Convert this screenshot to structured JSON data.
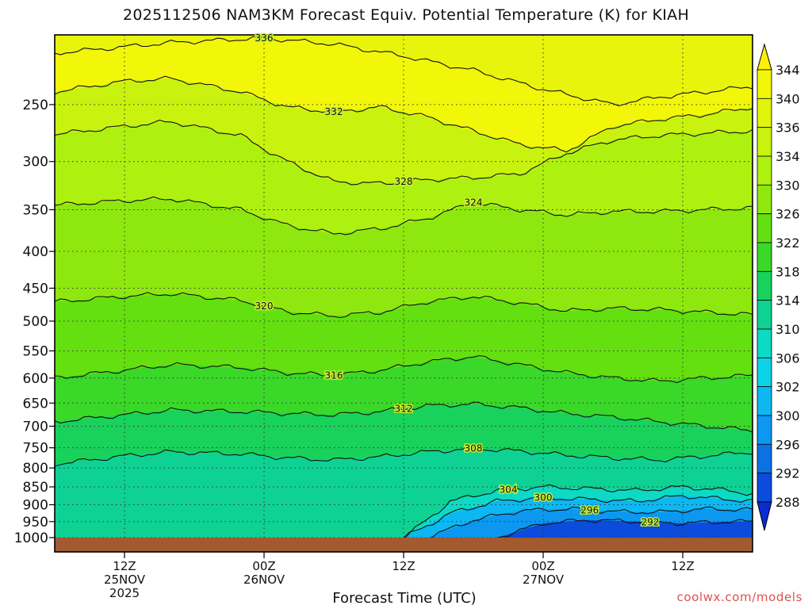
{
  "chart_data": {
    "type": "contour",
    "title": "2025112506 NAM3KM Forecast Equiv. Potential Temperature (K) for KIAH",
    "xlabel": "Forecast Time (UTC)",
    "ylabel": "",
    "credit": "coolwx.com/models",
    "y_axis": {
      "scale": "log-pressure",
      "range": [
        1000,
        200
      ],
      "ticks": [
        "250",
        "300",
        "350",
        "400",
        "450",
        "500",
        "550",
        "600",
        "650",
        "700",
        "750",
        "800",
        "850",
        "900",
        "950",
        "1000"
      ]
    },
    "x_axis": {
      "range_hours": [
        0,
        60
      ],
      "ticks": [
        {
          "hour": 6,
          "l1": "12Z",
          "l2": "25NOV",
          "l3": "2025"
        },
        {
          "hour": 18,
          "l1": "00Z",
          "l2": "26NOV",
          "l3": ""
        },
        {
          "hour": 30,
          "l1": "12Z",
          "l2": "",
          "l3": ""
        },
        {
          "hour": 42,
          "l1": "00Z",
          "l2": "27NOV",
          "l3": ""
        },
        {
          "hour": 54,
          "l1": "12Z",
          "l2": "",
          "l3": ""
        }
      ]
    },
    "colorbar": {
      "labels": [
        "344",
        "340",
        "336",
        "334",
        "330",
        "326",
        "322",
        "318",
        "314",
        "310",
        "306",
        "302",
        "300",
        "296",
        "292",
        "288"
      ],
      "colors": [
        "#fff000",
        "#f2f608",
        "#e1f50c",
        "#c9f20e",
        "#aef010",
        "#8ee80f",
        "#64e010",
        "#3ad828",
        "#18d25c",
        "#0ed294",
        "#0cdac4",
        "#0cd2e6",
        "#0cb8f2",
        "#0c98f0",
        "#0c72e4",
        "#0c4cdc",
        "#0a2cd2"
      ]
    },
    "contours": [
      {
        "label": "336",
        "x": [
          0,
          10,
          18,
          24,
          30,
          36,
          42,
          48,
          52,
          60
        ],
        "p": [
          212,
          205,
          202,
          206,
          214,
          224,
          238,
          250,
          244,
          236
        ]
      },
      {
        "label": "332",
        "x": [
          0,
          6,
          10,
          16,
          20,
          24,
          28,
          32,
          36,
          40,
          44,
          48,
          52,
          56,
          60
        ],
        "p": [
          240,
          232,
          230,
          240,
          252,
          256,
          252,
          260,
          272,
          284,
          290,
          268,
          262,
          258,
          252
        ]
      },
      {
        "label": "328",
        "x": [
          0,
          6,
          10,
          16,
          20,
          24,
          28,
          32,
          36,
          40,
          44,
          48,
          52,
          56,
          60
        ],
        "p": [
          275,
          268,
          264,
          276,
          300,
          320,
          322,
          318,
          316,
          312,
          292,
          280,
          276,
          274,
          272
        ]
      },
      {
        "label": "324",
        "x": [
          0,
          6,
          10,
          16,
          20,
          24,
          28,
          32,
          36,
          40,
          44,
          48,
          52,
          56,
          60
        ],
        "p": [
          345,
          340,
          338,
          350,
          368,
          378,
          372,
          360,
          342,
          350,
          356,
          352,
          352,
          350,
          348
        ]
      },
      {
        "label": "320",
        "x": [
          0,
          6,
          10,
          16,
          20,
          24,
          28,
          32,
          36,
          40,
          44,
          48,
          52,
          56,
          60
        ],
        "p": [
          470,
          462,
          458,
          468,
          485,
          492,
          486,
          470,
          462,
          472,
          484,
          480,
          482,
          486,
          490
        ]
      },
      {
        "label": "316",
        "x": [
          0,
          6,
          10,
          16,
          20,
          24,
          28,
          32,
          36,
          40,
          44,
          48,
          52,
          56,
          60
        ],
        "p": [
          600,
          585,
          575,
          580,
          590,
          595,
          585,
          570,
          560,
          575,
          590,
          600,
          606,
          600,
          595
        ]
      },
      {
        "label": "312",
        "x": [
          0,
          6,
          10,
          16,
          20,
          24,
          28,
          32,
          36,
          40,
          44,
          48,
          52,
          56,
          60
        ],
        "p": [
          690,
          675,
          665,
          668,
          672,
          675,
          668,
          656,
          652,
          660,
          672,
          680,
          690,
          700,
          710
        ]
      },
      {
        "label": "308",
        "x": [
          0,
          6,
          10,
          16,
          20,
          24,
          28,
          32,
          36,
          40,
          44,
          48,
          52,
          56,
          60
        ],
        "p": [
          790,
          770,
          760,
          765,
          775,
          780,
          772,
          760,
          752,
          758,
          768,
          775,
          780,
          770,
          760
        ]
      },
      {
        "label": "304",
        "x": [
          30,
          34,
          38,
          42,
          46,
          50,
          54,
          58,
          60
        ],
        "p": [
          1000,
          890,
          860,
          850,
          855,
          860,
          850,
          860,
          870
        ]
      },
      {
        "label": "300",
        "x": [
          30,
          34,
          38,
          42,
          46,
          50,
          54,
          58,
          60
        ],
        "p": [
          1000,
          925,
          890,
          880,
          885,
          890,
          875,
          885,
          890
        ]
      },
      {
        "label": "296",
        "x": [
          32,
          36,
          40,
          44,
          48,
          52,
          56,
          60
        ],
        "p": [
          1000,
          945,
          918,
          912,
          920,
          922,
          912,
          915
        ]
      },
      {
        "label": "292",
        "x": [
          38,
          42,
          46,
          50,
          54,
          58,
          60
        ],
        "p": [
          1000,
          955,
          945,
          950,
          955,
          950,
          950
        ]
      }
    ]
  }
}
